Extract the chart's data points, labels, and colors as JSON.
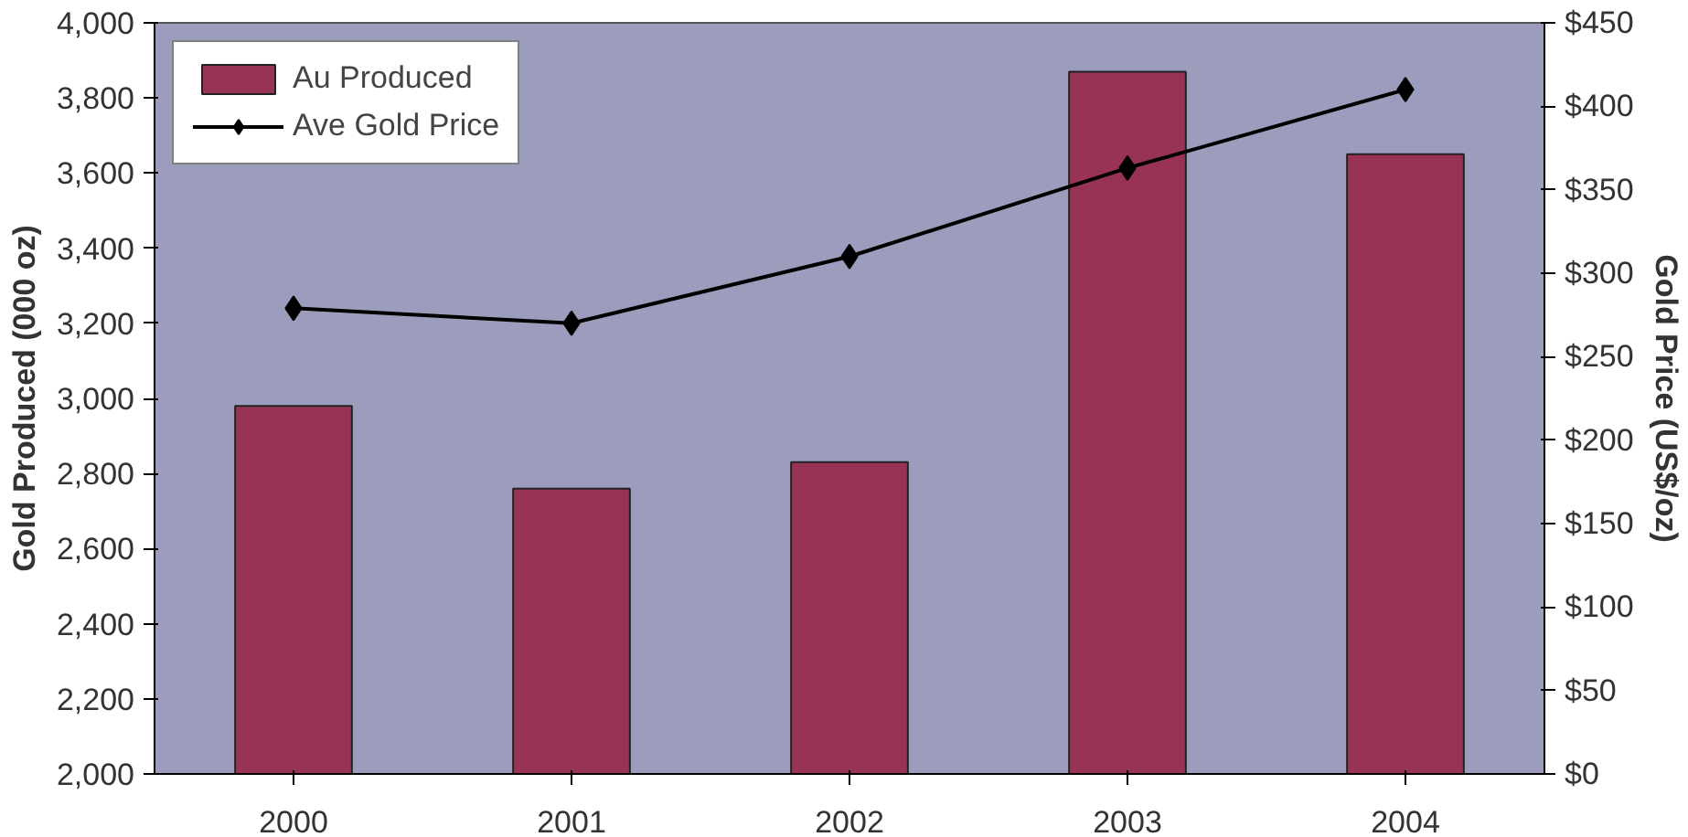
{
  "chart_data": {
    "type": "bar",
    "categories": [
      "2000",
      "2001",
      "2002",
      "2003",
      "2004"
    ],
    "ylabel": "Gold Produced (000 oz)",
    "y2label": "Gold Price (US$/oz)",
    "ylim": [
      2000,
      4000
    ],
    "yticks": [
      {
        "value": 2000,
        "label": "2,000"
      },
      {
        "value": 2200,
        "label": "2,200"
      },
      {
        "value": 2400,
        "label": "2,400"
      },
      {
        "value": 2600,
        "label": "2,600"
      },
      {
        "value": 2800,
        "label": "2,800"
      },
      {
        "value": 3000,
        "label": "3,000"
      },
      {
        "value": 3200,
        "label": "3,200"
      },
      {
        "value": 3400,
        "label": "3,400"
      },
      {
        "value": 3600,
        "label": "3,600"
      },
      {
        "value": 3800,
        "label": "3,800"
      },
      {
        "value": 4000,
        "label": "4,000"
      }
    ],
    "y2lim": [
      0,
      450
    ],
    "y2ticks": [
      {
        "value": 0,
        "label": "$0"
      },
      {
        "value": 50,
        "label": "$50"
      },
      {
        "value": 100,
        "label": "$100"
      },
      {
        "value": 150,
        "label": "$150"
      },
      {
        "value": 200,
        "label": "$200"
      },
      {
        "value": 250,
        "label": "$250"
      },
      {
        "value": 300,
        "label": "$300"
      },
      {
        "value": 350,
        "label": "$350"
      },
      {
        "value": 400,
        "label": "$400"
      },
      {
        "value": 450,
        "label": "$450"
      }
    ],
    "series": [
      {
        "name": "Au Produced",
        "color": "#993355",
        "values": [
          2980,
          2760,
          2830,
          3870,
          3650
        ]
      },
      {
        "name": "Ave Gold Price",
        "type": "line",
        "axis": "y2",
        "color": "#000000",
        "marker": "diamond",
        "values": [
          279,
          270,
          310,
          363,
          410
        ]
      }
    ],
    "legend": "top left",
    "grid": false
  }
}
